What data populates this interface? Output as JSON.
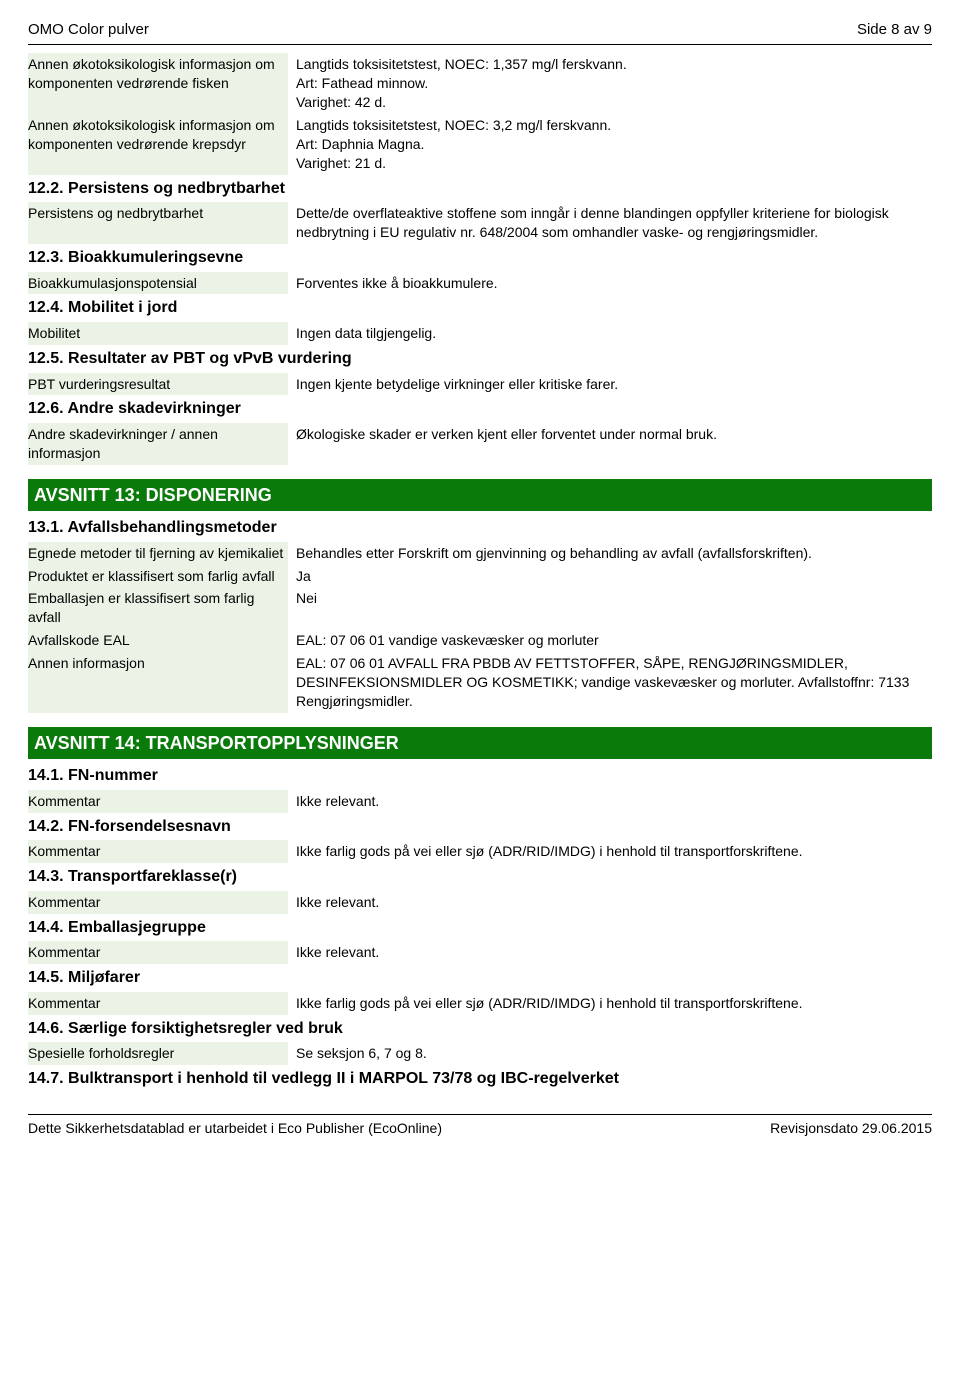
{
  "header": {
    "title": "OMO Color pulver",
    "page": "Side 8 av 9"
  },
  "s12": {
    "rows_a": [
      {
        "label": "Annen økotoksikologisk informasjon om komponenten vedrørende fisken",
        "value": "Langtids toksisitetstest, NOEC: 1,357 mg/l ferskvann.\nArt: Fathead minnow.\nVarighet: 42 d."
      },
      {
        "label": "Annen økotoksikologisk informasjon om komponenten vedrørende krepsdyr",
        "value": "Langtids toksisitetstest, NOEC: 3,2 mg/l ferskvann.\nArt: Daphnia Magna.\nVarighet: 21 d."
      }
    ],
    "h122": "12.2. Persistens og nedbrytbarhet",
    "row122": {
      "label": "Persistens og nedbrytbarhet",
      "value": "Dette/de overflateaktive stoffene som inngår i denne blandingen oppfyller kriteriene for biologisk nedbrytning i EU regulativ nr. 648/2004 som omhandler vaske- og rengjøringsmidler."
    },
    "h123": "12.3. Bioakkumuleringsevne",
    "row123": {
      "label": "Bioakkumulasjonspotensial",
      "value": "Forventes ikke å bioakkumulere."
    },
    "h124": "12.4. Mobilitet i jord",
    "row124": {
      "label": "Mobilitet",
      "value": "Ingen data tilgjengelig."
    },
    "h125": "12.5. Resultater av PBT og vPvB vurdering",
    "row125": {
      "label": "PBT vurderingsresultat",
      "value": "Ingen kjente betydelige virkninger eller kritiske farer."
    },
    "h126": "12.6. Andre skadevirkninger",
    "row126": {
      "label": "Andre skadevirkninger / annen informasjon",
      "value": "Økologiske skader er verken kjent eller forventet under normal bruk."
    }
  },
  "s13": {
    "title": "AVSNITT 13: DISPONERING",
    "h131": "13.1. Avfallsbehandlingsmetoder",
    "rows": [
      {
        "label": "Egnede metoder til fjerning av kjemikaliet",
        "value": "Behandles etter Forskrift om gjenvinning og behandling av avfall (avfallsforskriften)."
      },
      {
        "label": "Produktet er klassifisert som farlig avfall",
        "value": "Ja"
      },
      {
        "label": "Emballasjen er klassifisert som farlig avfall",
        "value": "Nei"
      },
      {
        "label": "Avfallskode EAL",
        "value": "EAL: 07 06 01 vandige vaskevæsker og morluter"
      },
      {
        "label": "Annen informasjon",
        "value": "EAL: 07 06 01 AVFALL FRA PBDB AV FETTSTOFFER, SÅPE, RENGJØRINGSMIDLER, DESINFEKSIONSMIDLER OG KOSMETIKK; vandige vaskevæsker og morluter. Avfallstoffnr: 7133 Rengjøringsmidler."
      }
    ]
  },
  "s14": {
    "title": "AVSNITT 14: TRANSPORTOPPLYSNINGER",
    "h141": "14.1. FN-nummer",
    "row141": {
      "label": "Kommentar",
      "value": "Ikke relevant."
    },
    "h142": "14.2. FN-forsendelsesnavn",
    "row142": {
      "label": "Kommentar",
      "value": "Ikke farlig gods på vei eller sjø (ADR/RID/IMDG) i henhold til transportforskriftene."
    },
    "h143": "14.3. Transportfareklasse(r)",
    "row143": {
      "label": "Kommentar",
      "value": "Ikke relevant."
    },
    "h144": "14.4. Emballasjegruppe",
    "row144": {
      "label": "Kommentar",
      "value": "Ikke relevant."
    },
    "h145": "14.5. Miljøfarer",
    "row145": {
      "label": "Kommentar",
      "value": "Ikke farlig gods på vei eller sjø (ADR/RID/IMDG) i henhold til transportforskriftene."
    },
    "h146": "14.6. Særlige forsiktighetsregler ved bruk",
    "row146": {
      "label": "Spesielle forholdsregler",
      "value": "Se seksjon 6, 7 og 8."
    },
    "h147": "14.7. Bulktransport i henhold til vedlegg II i MARPOL 73/78 og IBC-regelverket"
  },
  "footer": {
    "left": "Dette Sikkerhetsdatablad er utarbeidet i Eco Publisher (EcoOnline)",
    "right": "Revisjonsdato 29.06.2015"
  }
}
